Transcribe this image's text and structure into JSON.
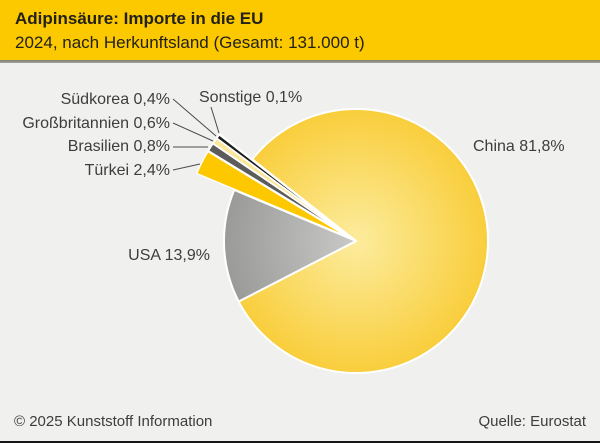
{
  "header": {
    "title": "Adipinsäure: Importe in die EU",
    "subtitle": "2024, nach Herkunftsland (Gesamt: 131.000 t)"
  },
  "footer": {
    "copyright": "© 2025 Kunststoff Information",
    "source": "Quelle: Eurostat"
  },
  "chart_data": {
    "type": "pie",
    "title": "Adipinsäure: Importe in die EU",
    "subtitle": "2024, nach Herkunftsland (Gesamt: 131.000 t)",
    "year": "2024",
    "total": "131.000 t",
    "unit": "%",
    "slices": [
      {
        "name": "China",
        "value": 81.8,
        "label": "China 81,8%",
        "exploded": false,
        "color_center": "#FCEC9E",
        "color_edge": "#F9CE3C"
      },
      {
        "name": "Sonstige",
        "value": 0.1,
        "label": "Sonstige 0,1%",
        "exploded": true,
        "color": "#C8C8C8"
      },
      {
        "name": "Südkorea",
        "value": 0.4,
        "label": "Südkorea 0,4%",
        "exploded": true,
        "color": "#1C1C1C"
      },
      {
        "name": "Großbritannien",
        "value": 0.6,
        "label": "Großbritannien 0,6%",
        "exploded": true,
        "color": "#FBE79B"
      },
      {
        "name": "Brasilien",
        "value": 0.8,
        "label": "Brasilien 0,8%",
        "exploded": true,
        "color": "#5C5C5C"
      },
      {
        "name": "Türkei",
        "value": 2.4,
        "label": "Türkei 2,4%",
        "exploded": true,
        "color": "#FDC800"
      },
      {
        "name": "USA",
        "value": 13.9,
        "label": "USA 13,9%",
        "exploded": false,
        "color_center": "#C9C9C7",
        "color_edge": "#9A9A98"
      }
    ],
    "colors": {
      "header_background": "#FCC800",
      "chart_background": "#F0F0EE",
      "label_text": "#3D3D3D",
      "leader_line": "#4B4B4B"
    },
    "legend_position": "labels-with-leader-lines",
    "start_angle_deg": 207.3,
    "direction": "counterclockwise"
  }
}
